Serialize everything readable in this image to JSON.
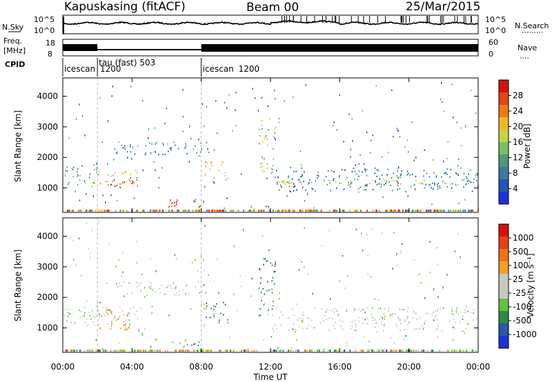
{
  "header": {
    "station": "Kapuskasing (fitACF)",
    "beam": "Beam 00",
    "date": "25/Mar/2015"
  },
  "top_panels": {
    "nsky_label": "N.Sky",
    "nsky_tick_high": "10^5",
    "nsky_tick_low": "10^0",
    "nsearch_label": "N.Search",
    "nsearch_tick_high": "10^5",
    "nsearch_tick_low": "10^0",
    "freq_label_1": "Freq.",
    "freq_label_2": "[MHz]",
    "freq_tick_high": "18",
    "freq_tick_low": "8",
    "nave_label": "Nave",
    "nave_tick_high": "60",
    "nave_tick_low": "0",
    "cpid_label": "CPID",
    "cpid_segments": [
      {
        "name": "icescan",
        "sub": "1200",
        "start": 0.0
      },
      {
        "name": "tau (fast) 503",
        "sub": "",
        "start": 2.0
      },
      {
        "name": "icescan",
        "sub": "1200",
        "start": 8.0
      }
    ]
  },
  "chart_data": [
    {
      "type": "heatmap",
      "title": "",
      "ylabel": "Slant Range [km]",
      "xlabel": "",
      "xlim": [
        0,
        24
      ],
      "ylim": [
        200,
        4600
      ],
      "yticks": [
        1000,
        2000,
        3000,
        4000
      ],
      "colorbar": {
        "label": "Power [dB]",
        "ticks": [
          "4",
          "8",
          "12",
          "16",
          "20",
          "24",
          "28"
        ],
        "colors": [
          "#1f2fe0",
          "#2255bb",
          "#3b7ba0",
          "#4f9a7a",
          "#78c060",
          "#c9d240",
          "#f2b820",
          "#f07a10",
          "#e84410",
          "#d81010"
        ]
      },
      "echo_regions": [
        {
          "t0": 0.0,
          "t1": 2.0,
          "r0": 1050,
          "r1": 1900,
          "level": 0.35
        },
        {
          "t0": 1.8,
          "t1": 4.5,
          "r0": 1150,
          "r1": 1700,
          "level": 0.55
        },
        {
          "t0": 2.0,
          "t1": 4.2,
          "r0": 950,
          "r1": 1300,
          "level": 0.95
        },
        {
          "t0": 3.0,
          "t1": 8.5,
          "r0": 2100,
          "r1": 2550,
          "level": 0.25
        },
        {
          "t0": 6.0,
          "t1": 8.0,
          "r0": 400,
          "r1": 650,
          "level": 0.95
        },
        {
          "t0": 8.2,
          "t1": 9.5,
          "r0": 1200,
          "r1": 1900,
          "level": 0.65
        },
        {
          "t0": 11.3,
          "t1": 12.3,
          "r0": 1400,
          "r1": 3300,
          "level": 0.5
        },
        {
          "t0": 12.0,
          "t1": 24.0,
          "r0": 900,
          "r1": 1700,
          "level": 0.2
        },
        {
          "t0": 12.0,
          "t1": 24.0,
          "r0": 1100,
          "r1": 1300,
          "level": 0.55
        }
      ]
    },
    {
      "type": "heatmap",
      "title": "",
      "ylabel": "Slant Range [km]",
      "xlabel": "Time UT",
      "xlim": [
        0,
        24
      ],
      "ylim": [
        200,
        4600
      ],
      "xticks": [
        "00:00",
        "04:00",
        "08:00",
        "12:00",
        "16:00",
        "20:00",
        "00:00"
      ],
      "yticks": [
        1000,
        2000,
        3000,
        4000
      ],
      "colorbar": {
        "label": "Velocity [m s⁻¹]",
        "ticks": [
          "1000",
          "500",
          "100",
          "25",
          "-25",
          "-100",
          "-500",
          "-1000"
        ],
        "colors": [
          "#1f2fe0",
          "#2a58a8",
          "#2e8a4a",
          "#62c23a",
          "#c8c8c0",
          "#c8c8c0",
          "#f2a020",
          "#f07010",
          "#e84010",
          "#d81010"
        ]
      },
      "echo_regions": [
        {
          "t0": 0.0,
          "t1": 2.0,
          "r0": 1050,
          "r1": 1900,
          "vel": 0.45
        },
        {
          "t0": 1.8,
          "t1": 4.5,
          "r0": 1150,
          "r1": 1700,
          "vel": 0.45
        },
        {
          "t0": 2.0,
          "t1": 4.2,
          "r0": 950,
          "r1": 1650,
          "vel": 0.75
        },
        {
          "t0": 3.0,
          "t1": 8.5,
          "r0": 2100,
          "r1": 2550,
          "vel": 0.45
        },
        {
          "t0": 6.0,
          "t1": 8.0,
          "r0": 400,
          "r1": 650,
          "vel": 0.25
        },
        {
          "t0": 8.2,
          "t1": 9.5,
          "r0": 1200,
          "r1": 1900,
          "vel": 0.15
        },
        {
          "t0": 11.3,
          "t1": 12.3,
          "r0": 1400,
          "r1": 3300,
          "vel": 0.2
        },
        {
          "t0": 12.0,
          "t1": 24.0,
          "r0": 900,
          "r1": 1700,
          "vel": 0.45
        }
      ]
    }
  ]
}
